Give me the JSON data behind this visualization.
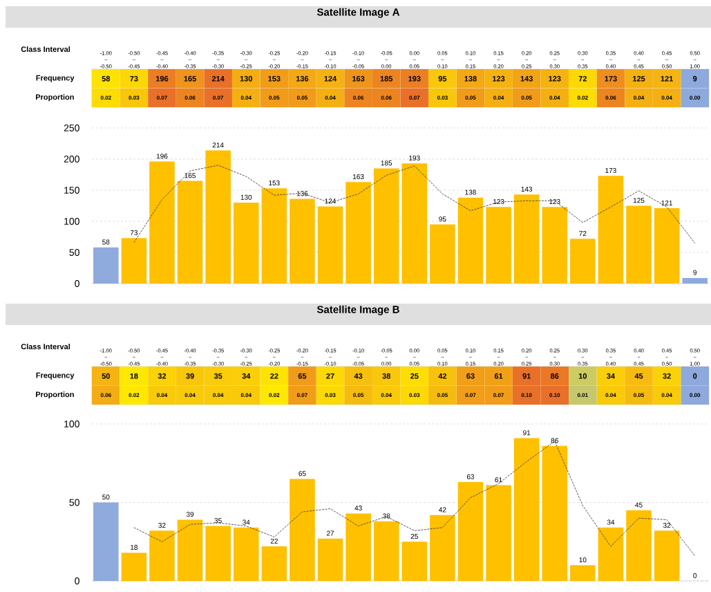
{
  "chart_data": [
    {
      "type": "heatmap",
      "title": "Satellite Image A",
      "xlabel": "Class Interval",
      "categories": [
        "-1.00 ~ -0.50",
        "-0.50 ~ -0.45",
        "-0.45 ~ -0.40",
        "-0.40 ~ -0.35",
        "-0.35 ~ -0.30",
        "-0.30 ~ -0.25",
        "-0.25 ~ -0.20",
        "-0.20 ~ -0.15",
        "-0.15 ~ -0.10",
        "-0.10 ~ -0.05",
        "-0.05 ~ 0.00",
        "0.00 ~ 0.05",
        "0.05 ~ 0.10",
        "0.10 ~ 0.15",
        "0.15 ~ 0.20",
        "0.20 ~ 0.25",
        "0.25 ~ 0.30",
        "0.30 ~ 0.35",
        "0.35 ~ 0.40",
        "0.40 ~ 0.45",
        "0.45 ~ 0.50",
        "0.50 ~ 1.00"
      ],
      "y_categories": [
        "Frequency",
        "Proportion"
      ],
      "cells": [
        [
          58,
          73,
          196,
          165,
          214,
          130,
          153,
          136,
          124,
          163,
          185,
          193,
          95,
          138,
          123,
          143,
          123,
          72,
          173,
          125,
          121,
          9
        ],
        [
          0.02,
          0.03,
          0.07,
          0.06,
          0.07,
          0.04,
          0.05,
          0.05,
          0.04,
          0.06,
          0.06,
          0.07,
          0.03,
          0.05,
          0.04,
          0.05,
          0.04,
          0.02,
          0.06,
          0.04,
          0.04,
          0.0
        ]
      ],
      "cell_labels": [
        [
          "58",
          "73",
          "196",
          "165",
          "214",
          "130",
          "153",
          "136",
          "124",
          "163",
          "185",
          "193",
          "95",
          "138",
          "123",
          "143",
          "123",
          "72",
          "173",
          "125",
          "121",
          "9"
        ],
        [
          "0.02",
          "0.03",
          "0.07",
          "0.06",
          "0.07",
          "0.04",
          "0.05",
          "0.05",
          "0.04",
          "0.06",
          "0.06",
          "0.07",
          "0.03",
          "0.05",
          "0.04",
          "0.05",
          "0.04",
          "0.02",
          "0.06",
          "0.04",
          "0.04",
          "0.00"
        ]
      ]
    },
    {
      "type": "bar",
      "categories": [
        null,
        null,
        null,
        null,
        null,
        null,
        null,
        null,
        null,
        null,
        null,
        null,
        null,
        null,
        null,
        null,
        null,
        null,
        null,
        null,
        null,
        null
      ],
      "series": [
        {
          "values": [
            58,
            73,
            196,
            165,
            214,
            130,
            153,
            136,
            124,
            163,
            185,
            193,
            95,
            138,
            123,
            143,
            123,
            72,
            173,
            125,
            121,
            9
          ],
          "value_labels": [
            "58",
            "73",
            "196",
            "165",
            "214",
            "130",
            "153",
            "136",
            "124",
            "163",
            "185",
            "193",
            "95",
            "138",
            "123",
            "143",
            "123",
            "72",
            "173",
            "125",
            "121",
            "9"
          ],
          "colors": [
            "#8faadc",
            "#ffc000",
            "#ffc000",
            "#ffc000",
            "#ffc000",
            "#ffc000",
            "#ffc000",
            "#ffc000",
            "#ffc000",
            "#ffc000",
            "#ffc000",
            "#ffc000",
            "#ffc000",
            "#ffc000",
            "#ffc000",
            "#ffc000",
            "#ffc000",
            "#ffc000",
            "#ffc000",
            "#ffc000",
            "#ffc000",
            "#8faadc"
          ]
        },
        {
          "type": "line",
          "color": "#404040",
          "line_style": "dashed",
          "values": [
            null,
            66,
            135,
            181,
            190,
            172,
            142,
            145,
            130,
            144,
            174,
            189,
            144,
            117,
            131,
            133,
            133,
            98,
            123,
            149,
            123,
            65
          ]
        }
      ],
      "ylim": [
        0,
        250
      ],
      "yticks": [
        0,
        50,
        100,
        150,
        200,
        250
      ],
      "grid": "y",
      "tick_labels": "y"
    },
    {
      "type": "heatmap",
      "title": "Satellite Image B",
      "xlabel": "Class Interval",
      "categories": [
        "-1.00 ~ -0.50",
        "-0.50 ~ -0.45",
        "-0.45 ~ -0.40",
        "-0.40 ~ -0.35",
        "-0.35 ~ -0.30",
        "-0.30 ~ -0.25",
        "-0.25 ~ -0.20",
        "-0.20 ~ -0.15",
        "-0.15 ~ -0.10",
        "-0.10 ~ -0.05",
        "-0.05 ~ 0.00",
        "0.00 ~ 0.05",
        "0.05 ~ 0.10",
        "0.10 ~ 0.15",
        "0.15 ~ 0.20",
        "0.20 ~ 0.25",
        "0.25 ~ 0.30",
        "0.30 ~ 0.35",
        "0.35 ~ 0.40",
        "0.40 ~ 0.45",
        "0.45 ~ 0.50",
        "0.50 ~ 1.00"
      ],
      "y_categories": [
        "Frequency",
        "Proportion"
      ],
      "cells": [
        [
          50,
          18,
          32,
          39,
          35,
          34,
          22,
          65,
          27,
          43,
          38,
          25,
          42,
          63,
          61,
          91,
          86,
          10,
          34,
          45,
          32,
          0
        ],
        [
          0.06,
          0.02,
          0.04,
          0.04,
          0.04,
          0.04,
          0.02,
          0.07,
          0.03,
          0.05,
          0.04,
          0.03,
          0.05,
          0.07,
          0.07,
          0.1,
          0.1,
          0.01,
          0.04,
          0.05,
          0.04,
          0.0
        ]
      ],
      "cell_labels": [
        [
          "50",
          "18",
          "32",
          "39",
          "35",
          "34",
          "22",
          "65",
          "27",
          "43",
          "38",
          "25",
          "42",
          "63",
          "61",
          "91",
          "86",
          "10",
          "34",
          "45",
          "32",
          "0"
        ],
        [
          "0.06",
          "0.02",
          "0.04",
          "0.04",
          "0.04",
          "0.04",
          "0.02",
          "0.07",
          "0.03",
          "0.05",
          "0.04",
          "0.03",
          "0.05",
          "0.07",
          "0.07",
          "0.10",
          "0.10",
          "0.01",
          "0.04",
          "0.05",
          "0.04",
          "0.00"
        ]
      ]
    },
    {
      "type": "bar",
      "categories": [
        null,
        null,
        null,
        null,
        null,
        null,
        null,
        null,
        null,
        null,
        null,
        null,
        null,
        null,
        null,
        null,
        null,
        null,
        null,
        null,
        null,
        null
      ],
      "series": [
        {
          "values": [
            50,
            18,
            32,
            39,
            35,
            34,
            22,
            65,
            27,
            43,
            38,
            25,
            42,
            63,
            61,
            91,
            86,
            10,
            34,
            45,
            32,
            0
          ],
          "value_labels": [
            "50",
            "18",
            "32",
            "39",
            "35",
            "34",
            "22",
            "65",
            "27",
            "43",
            "38",
            "25",
            "42",
            "63",
            "61",
            "91",
            "86",
            "10",
            "34",
            "45",
            "32",
            "0"
          ],
          "colors": [
            "#8faadc",
            "#ffc000",
            "#ffc000",
            "#ffc000",
            "#ffc000",
            "#ffc000",
            "#ffc000",
            "#ffc000",
            "#ffc000",
            "#ffc000",
            "#ffc000",
            "#ffc000",
            "#ffc000",
            "#ffc000",
            "#ffc000",
            "#ffc000",
            "#ffc000",
            "#ffc000",
            "#ffc000",
            "#ffc000",
            "#ffc000",
            "#8faadc"
          ]
        },
        {
          "type": "line",
          "color": "#404040",
          "line_style": "dashed",
          "values": [
            null,
            34,
            25,
            36,
            37,
            35,
            28,
            44,
            46,
            35,
            41,
            32,
            34,
            53,
            62,
            76,
            89,
            48,
            22,
            40,
            39,
            16
          ]
        }
      ],
      "ylim": [
        0,
        100
      ],
      "yticks": [
        0,
        50,
        100
      ],
      "grid": "y",
      "tick_labels": "y"
    }
  ]
}
